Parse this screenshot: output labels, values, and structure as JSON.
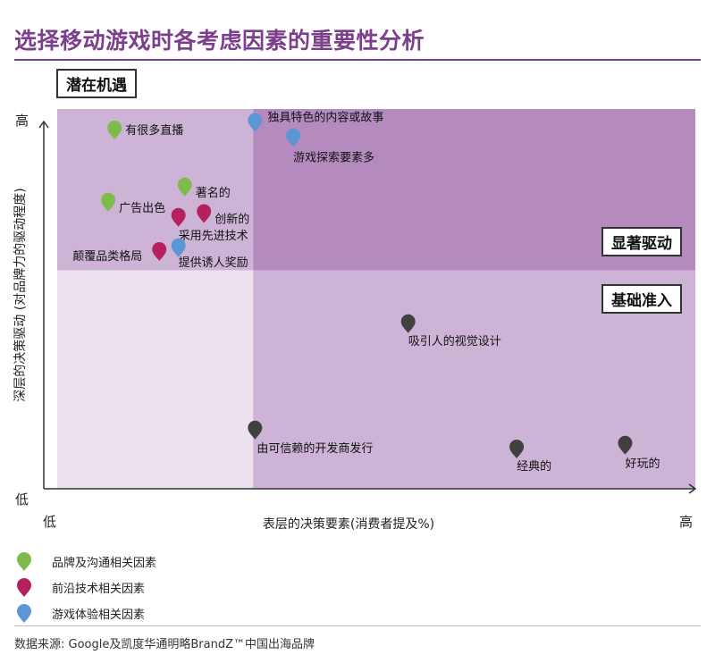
{
  "title": "选择移动游戏时各考虑因素的重要性分析",
  "quadrants": {
    "top_left": "潜在机遇",
    "top_right": "显著驱动",
    "bottom_right": "基础准入"
  },
  "colors": {
    "brand": "#7dbb4a",
    "tech": "#b5215e",
    "game": "#5b97d4",
    "base": "#404040"
  },
  "chart_data": {
    "type": "scatter",
    "xlabel": "表层的决策要素(消费者提及%)",
    "ylabel": "深层的决策驱动 (对品牌力的驱动程度)",
    "x_low": "低",
    "x_high": "高",
    "y_low": "低",
    "y_high": "高",
    "xlim": [
      0,
      100
    ],
    "ylim": [
      0,
      100
    ],
    "points": [
      {
        "label": "有很多直播",
        "x": 9,
        "y": 92,
        "group": "brand"
      },
      {
        "label": "著名的",
        "x": 20,
        "y": 77,
        "group": "brand"
      },
      {
        "label": "广告出色",
        "x": 8,
        "y": 73,
        "group": "brand"
      },
      {
        "label": "创新的",
        "x": 23,
        "y": 70,
        "group": "tech"
      },
      {
        "label": "采用先进技术",
        "x": 19,
        "y": 69,
        "group": "tech"
      },
      {
        "label": "颠覆品类格局",
        "x": 16,
        "y": 60,
        "group": "tech"
      },
      {
        "label": "独具特色的内容或故事",
        "x": 31,
        "y": 94,
        "group": "game"
      },
      {
        "label": "游戏探索要素多",
        "x": 37,
        "y": 90,
        "group": "game"
      },
      {
        "label": "提供诱人奖励",
        "x": 19,
        "y": 61,
        "group": "game"
      },
      {
        "label": "吸引人的视觉设计",
        "x": 55,
        "y": 41,
        "group": "base"
      },
      {
        "label": "由可信赖的开发商发行",
        "x": 31,
        "y": 13,
        "group": "base"
      },
      {
        "label": "经典的",
        "x": 72,
        "y": 8,
        "group": "base"
      },
      {
        "label": "好玩的",
        "x": 89,
        "y": 9,
        "group": "base"
      }
    ]
  },
  "legend": [
    {
      "label": "品牌及沟通相关因素",
      "group": "brand"
    },
    {
      "label": "前沿技术相关因素",
      "group": "tech"
    },
    {
      "label": "游戏体验相关因素",
      "group": "game"
    }
  ],
  "source": "数据来源: Google及凯度华通明略BrandZ™中国出海品牌"
}
